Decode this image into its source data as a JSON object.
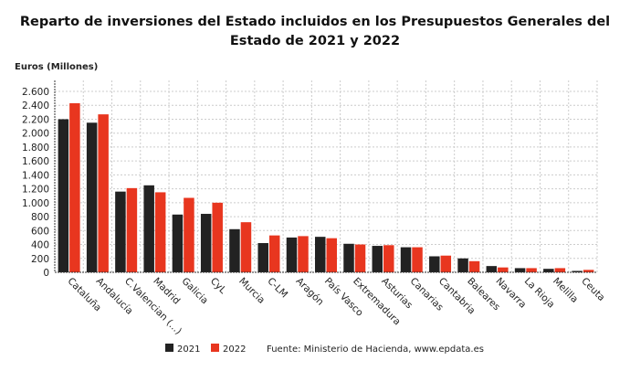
{
  "chart_data": {
    "type": "bar",
    "title": "Reparto de inversiones del Estado incluidos en los Presupuestos Generales del Estado de 2021 y 2022",
    "ylabel": "Euros (Millones)",
    "ylim": [
      0,
      2600
    ],
    "yticks": [
      0,
      200,
      400,
      600,
      800,
      1000,
      1200,
      1400,
      1600,
      1800,
      2000,
      2200,
      2400,
      2600
    ],
    "ytick_labels": [
      "0",
      "200",
      "400",
      "600",
      "800",
      "1.000",
      "1.200",
      "1.400",
      "1.600",
      "1.800",
      "2.000",
      "2.200",
      "2.400",
      "2.600"
    ],
    "grid": true,
    "legend": "bottom",
    "categories": [
      "Cataluña",
      "Andalucía",
      "C.Valencian (...)",
      "Madrid",
      "Galicia",
      "CyL",
      "Murcia",
      "C-LM",
      "Aragón",
      "País Vasco",
      "Extremadura",
      "Asturias",
      "Canarias",
      "Cantabria",
      "Baleares",
      "Navarra",
      "La Rioja",
      "Melilla",
      "Ceuta"
    ],
    "series": [
      {
        "name": "2021",
        "color": "#222222",
        "values": [
          2200,
          2150,
          1160,
          1250,
          830,
          840,
          620,
          420,
          500,
          510,
          410,
          380,
          360,
          230,
          200,
          90,
          60,
          50,
          20
        ]
      },
      {
        "name": "2022",
        "color": "#e8361f",
        "values": [
          2430,
          2270,
          1210,
          1150,
          1070,
          1000,
          720,
          530,
          520,
          490,
          400,
          390,
          360,
          240,
          160,
          70,
          60,
          60,
          35
        ]
      }
    ],
    "source": "Fuente: Ministerio de Hacienda, www.epdata.es"
  }
}
